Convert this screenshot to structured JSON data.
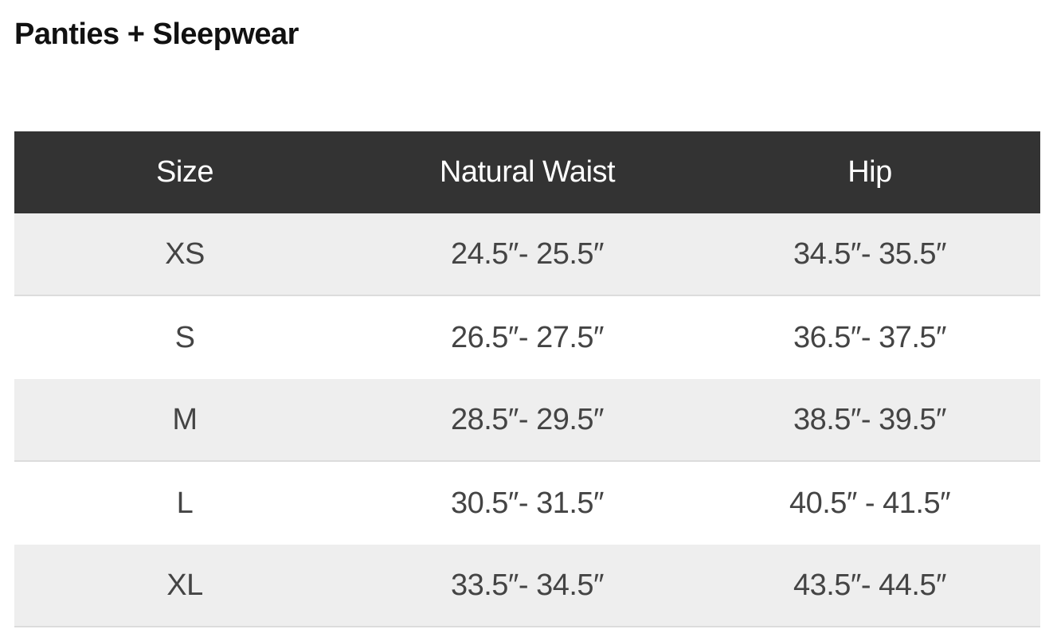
{
  "title": "Panties + Sleepwear",
  "table": {
    "headers": [
      "Size",
      "Natural Waist",
      "Hip"
    ],
    "rows": [
      [
        "XS",
        "24.5″- 25.5″",
        "34.5″- 35.5″"
      ],
      [
        "S",
        "26.5″- 27.5″",
        "36.5″- 37.5″"
      ],
      [
        "M",
        "28.5″- 29.5″",
        "38.5″- 39.5″"
      ],
      [
        "L",
        "30.5″- 31.5″",
        "40.5″ - 41.5″"
      ],
      [
        "XL",
        "33.5″- 34.5″",
        "43.5″- 44.5″"
      ]
    ]
  },
  "colors": {
    "header_bg": "#333333",
    "alt_row_bg": "#eeeeee"
  }
}
